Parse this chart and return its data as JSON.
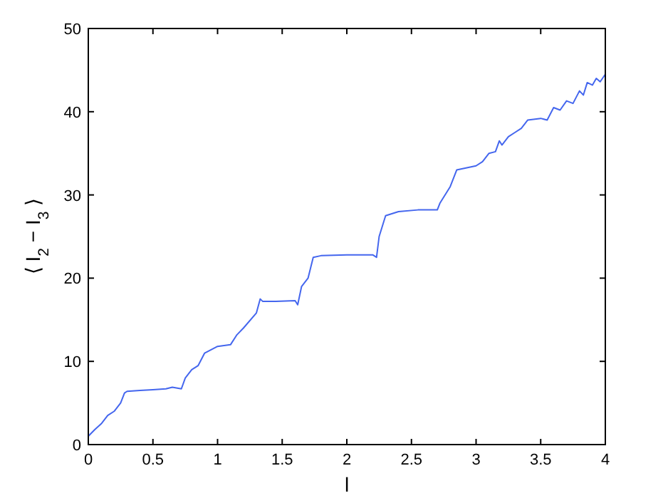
{
  "chart_data": {
    "type": "line",
    "xlabel": "l",
    "ylabel": "⟨ I$_{2}$ − I$_{3}$ ⟩",
    "xlim": [
      0,
      4
    ],
    "ylim": [
      0,
      50
    ],
    "xticks": [
      0,
      0.5,
      1,
      1.5,
      2,
      2.5,
      3,
      3.5,
      4
    ],
    "yticks": [
      0,
      10,
      20,
      30,
      40,
      50
    ],
    "grid": false,
    "series": [
      {
        "color": "#4466ee",
        "x": [
          0,
          0.05,
          0.1,
          0.15,
          0.2,
          0.25,
          0.28,
          0.3,
          0.4,
          0.5,
          0.6,
          0.65,
          0.72,
          0.75,
          0.8,
          0.85,
          0.9,
          1.0,
          1.1,
          1.15,
          1.2,
          1.3,
          1.33,
          1.35,
          1.45,
          1.6,
          1.62,
          1.65,
          1.7,
          1.74,
          1.8,
          2.0,
          2.2,
          2.23,
          2.25,
          2.3,
          2.4,
          2.55,
          2.7,
          2.72,
          2.8,
          2.85,
          3.0,
          3.05,
          3.1,
          3.15,
          3.18,
          3.2,
          3.25,
          3.3,
          3.35,
          3.4,
          3.5,
          3.55,
          3.6,
          3.65,
          3.7,
          3.75,
          3.8,
          3.83,
          3.86,
          3.9,
          3.93,
          3.96,
          4.0
        ],
        "values": [
          1,
          1.8,
          2.5,
          3.5,
          4,
          5,
          6.2,
          6.4,
          6.5,
          6.6,
          6.7,
          6.9,
          6.7,
          8,
          9,
          9.5,
          11,
          11.8,
          12,
          13.2,
          14,
          15.8,
          17.5,
          17.2,
          17.2,
          17.3,
          16.8,
          19,
          20,
          22.5,
          22.7,
          22.8,
          22.8,
          22.5,
          25,
          27.5,
          28,
          28.2,
          28.2,
          29,
          31,
          33,
          33.5,
          34,
          35,
          35.2,
          36.5,
          36,
          37,
          37.5,
          38,
          39,
          39.2,
          39,
          40.5,
          40.2,
          41.3,
          41,
          42.5,
          42,
          43.5,
          43.2,
          44,
          43.6,
          44.5
        ]
      }
    ]
  }
}
